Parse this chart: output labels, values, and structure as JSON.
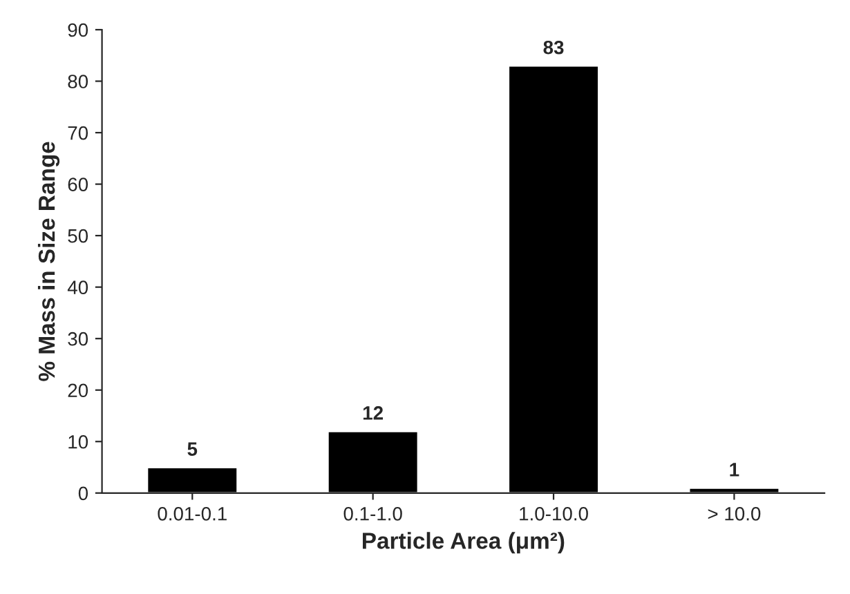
{
  "chart_data": {
    "type": "bar",
    "xlabel": "Particle Area (μm²)",
    "ylabel": "% Mass in Size Range",
    "categories": [
      "0.01-0.1",
      "0.1-1.0",
      "1.0-10.0",
      "> 10.0"
    ],
    "values": [
      5,
      12,
      83,
      1
    ],
    "color": "#000000",
    "ylim": [
      0,
      90
    ],
    "yticks": [
      0,
      10,
      20,
      30,
      40,
      50,
      60,
      70,
      80,
      90
    ],
    "grid": false,
    "data_labels": true
  }
}
